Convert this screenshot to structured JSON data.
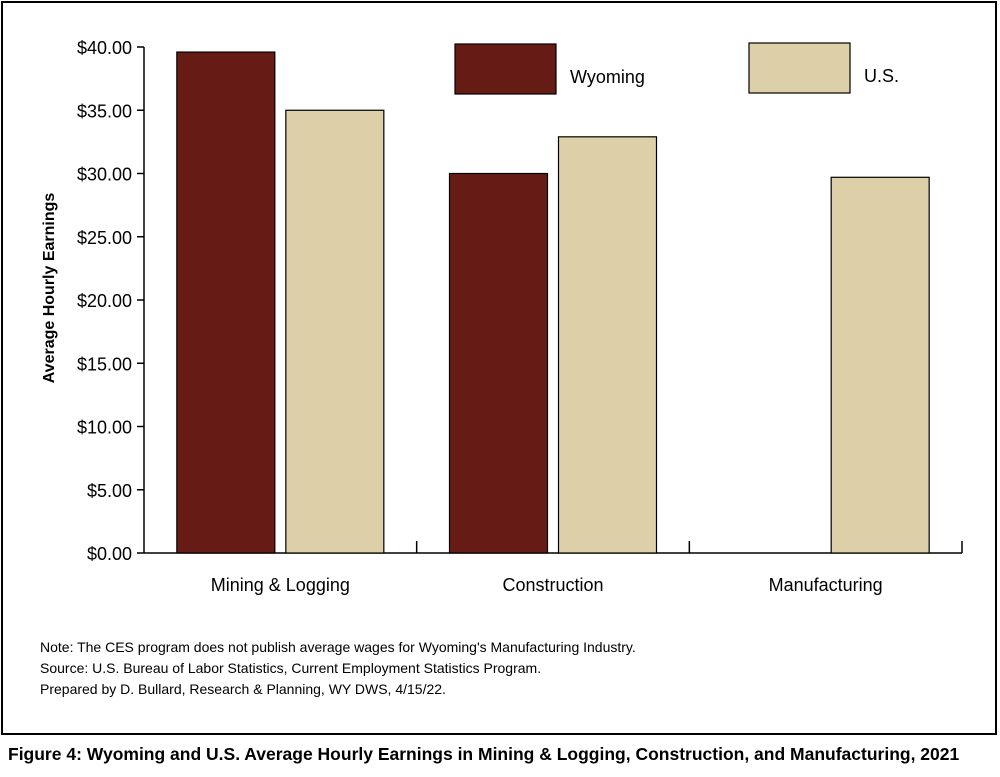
{
  "chart_data": {
    "type": "bar",
    "categories": [
      "Mining & Logging",
      "Construction",
      "Manufacturing"
    ],
    "series": [
      {
        "name": "Wyoming",
        "color": "#661c14",
        "values": [
          39.6,
          30.0,
          null
        ]
      },
      {
        "name": "U.S.",
        "color": "#ddd0a9",
        "values": [
          35.0,
          32.9,
          29.7
        ]
      }
    ],
    "ylabel": "Average Hourly Earnings",
    "ylim": [
      0,
      40
    ],
    "yticks": [
      "$0.00",
      "$5.00",
      "$10.00",
      "$15.00",
      "$20.00",
      "$25.00",
      "$30.00",
      "$35.00",
      "$40.00"
    ],
    "grid": false,
    "legend": "top"
  },
  "notes": [
    "Note: The CES program does not publish average wages for Wyoming's Manufacturing Industry.",
    "Source: U.S. Bureau of Labor Statistics, Current Employment Statistics Program.",
    "Prepared by D. Bullard, Research & Planning, WY DWS, 4/15/22."
  ],
  "caption": "Figure 4: Wyoming and U.S. Average Hourly Earnings in Mining & Logging, Construction, and Manufacturing, 2021"
}
